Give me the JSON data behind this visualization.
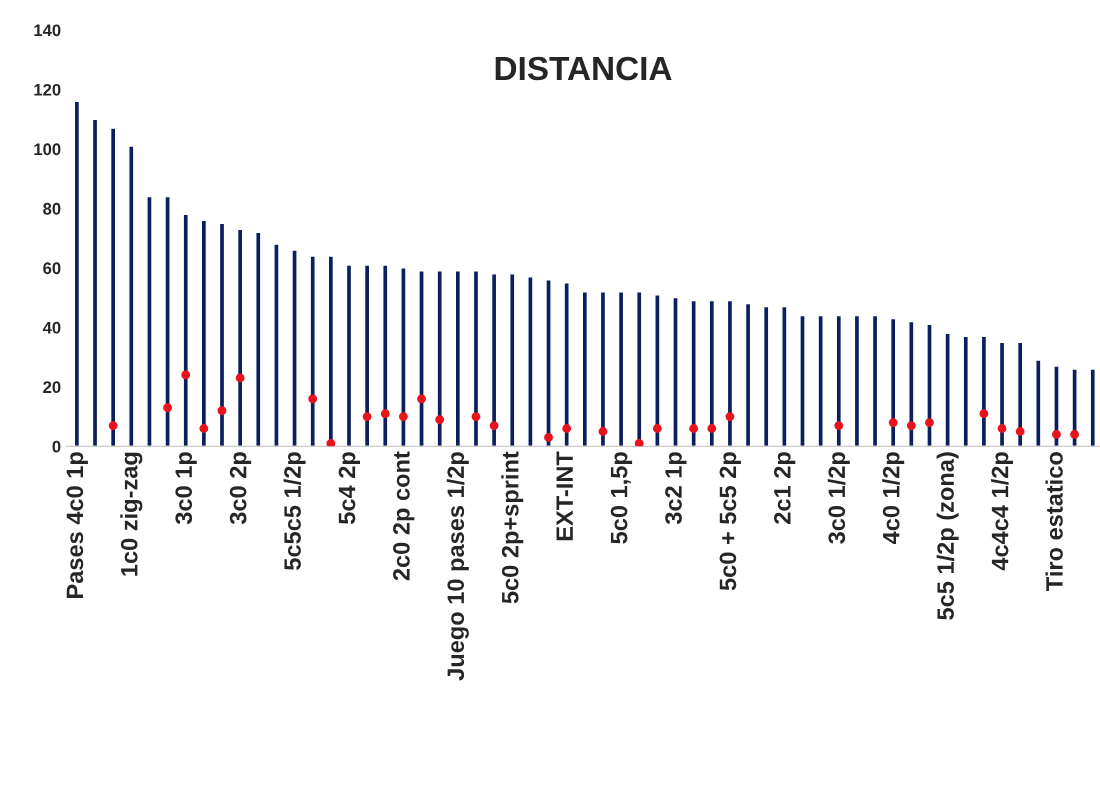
{
  "chart_data": {
    "type": "bar",
    "title": "DISTANCIA",
    "categories": [
      "Pases 4c0 1p",
      null,
      null,
      "1c0 zig-zag",
      null,
      null,
      "3c0 1p",
      null,
      null,
      "3c0 2p",
      null,
      null,
      "5c5c5 1/2p",
      null,
      null,
      "5c4 2p",
      null,
      null,
      "2c0 2p cont",
      null,
      null,
      "Juego 10 pases 1/2p",
      null,
      null,
      "5c0 2p+sprint",
      null,
      null,
      "EXT-INT",
      null,
      null,
      "5c0 1,5p",
      null,
      null,
      "3c2 1p",
      null,
      null,
      "5c0 + 5c5 2p",
      null,
      null,
      "2c1 2p",
      null,
      null,
      "3c0 1/2p",
      null,
      null,
      "4c0 1/2p",
      null,
      null,
      "5c5 1/2p (zona)",
      null,
      null,
      "4c4c4 1/2p",
      null,
      null,
      "Tiro estatico",
      null,
      null
    ],
    "series": [
      {
        "color": "#0b1f5e",
        "values": [
          116,
          110,
          107,
          101,
          84,
          84,
          78,
          76,
          75,
          73,
          72,
          68,
          66,
          64,
          64,
          61,
          61,
          61,
          60,
          59,
          59,
          59,
          59,
          58,
          58,
          57,
          56,
          55,
          52,
          52,
          52,
          52,
          51,
          50,
          49,
          49,
          49,
          48,
          47,
          47,
          44,
          44,
          44,
          44,
          44,
          43,
          42,
          41,
          38,
          37,
          37,
          35,
          35,
          29,
          27,
          26,
          26
        ]
      },
      {
        "type": "scatter",
        "color": "#e8131b",
        "values": [
          null,
          null,
          7,
          null,
          null,
          13,
          24,
          6,
          12,
          23,
          null,
          null,
          null,
          16,
          1,
          null,
          10,
          11,
          10,
          16,
          9,
          null,
          10,
          7,
          null,
          null,
          3,
          6,
          null,
          5,
          null,
          1,
          6,
          null,
          6,
          6,
          10,
          null,
          null,
          null,
          null,
          null,
          7,
          null,
          null,
          8,
          7,
          8,
          null,
          null,
          11,
          6,
          5,
          null,
          4,
          4,
          null
        ]
      }
    ],
    "ylim": [
      0,
      140
    ],
    "yticks": [
      0,
      20,
      40,
      60,
      80,
      100,
      120,
      140
    ],
    "grid": false,
    "legend": false
  }
}
